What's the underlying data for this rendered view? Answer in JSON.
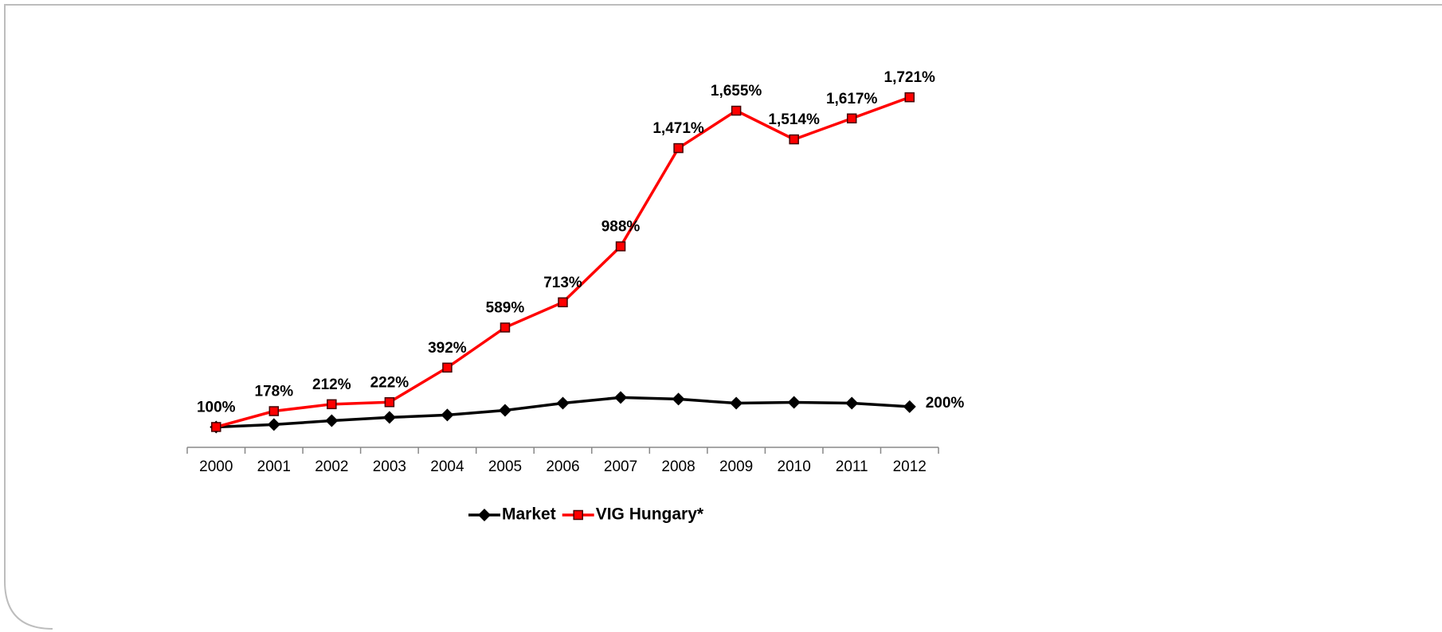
{
  "chart_data": {
    "type": "line",
    "categories": [
      "2000",
      "2001",
      "2002",
      "2003",
      "2004",
      "2005",
      "2006",
      "2007",
      "2008",
      "2009",
      "2010",
      "2011",
      "2012"
    ],
    "ylim": [
      0,
      1800
    ],
    "legend": "bottom",
    "series": [
      {
        "name": "Market",
        "color": "#000000",
        "marker": "diamond",
        "values": [
          100,
          112,
          131,
          147,
          159,
          182,
          217,
          245,
          237,
          217,
          221,
          217,
          200
        ],
        "value_labels": [
          null,
          null,
          null,
          null,
          null,
          null,
          null,
          null,
          null,
          null,
          null,
          null,
          "200%"
        ]
      },
      {
        "name": "VIG Hungary*",
        "color": "#ff0000",
        "marker": "square",
        "values": [
          100,
          178,
          212,
          222,
          392,
          589,
          713,
          988,
          1471,
          1655,
          1514,
          1617,
          1721
        ],
        "value_labels": [
          "100%",
          "178%",
          "212%",
          "222%",
          "392%",
          "589%",
          "713%",
          "988%",
          "1,471%",
          "1,655%",
          "1,514%",
          "1,617%",
          "1,721%"
        ]
      }
    ]
  }
}
